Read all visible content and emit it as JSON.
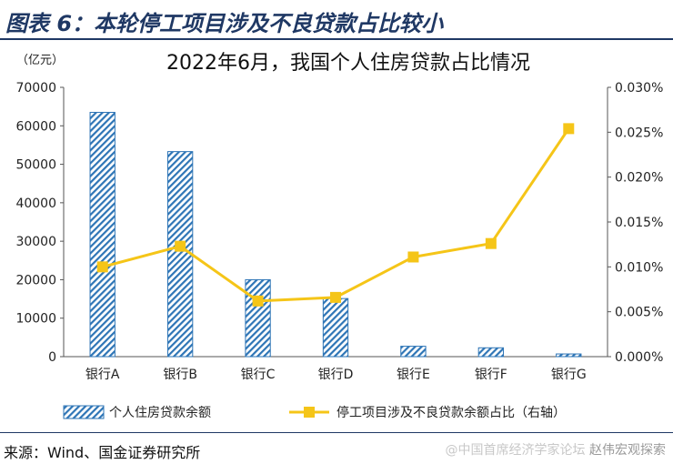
{
  "header": {
    "title": "图表 6：本轮停工项目涉及不良贷款占比较小"
  },
  "source": "来源：Wind、国金证券研究所",
  "watermark": {
    "account": "赵伟宏观探索",
    "forum": "@中国首席经济学家论坛"
  },
  "colors": {
    "bar": "#2e75b6",
    "line": "#f5c518",
    "title_bar": "#1f3864"
  },
  "chart_data": {
    "type": "bar",
    "title": "2022年6月，我国个人住房贷款占比情况",
    "left_unit": "（亿元）",
    "categories": [
      "银行A",
      "银行B",
      "银行C",
      "银行D",
      "银行E",
      "银行F",
      "银行G"
    ],
    "series": [
      {
        "name": "个人住房贷款余额",
        "type": "bar",
        "axis": "left",
        "values": [
          63500,
          53300,
          20000,
          15100,
          2700,
          2300,
          700
        ]
      },
      {
        "name": "停工项目涉及不良贷款余额占比（右轴）",
        "type": "line",
        "axis": "right",
        "values": [
          0.01,
          0.0123,
          0.0062,
          0.0066,
          0.0111,
          0.0126,
          0.0254
        ]
      }
    ],
    "ylim_left": [
      0,
      70000
    ],
    "yticks_left": [
      "0",
      "10000",
      "20000",
      "30000",
      "40000",
      "50000",
      "60000",
      "70000"
    ],
    "ylim_right": [
      0,
      0.03
    ],
    "yticks_right": [
      "0.000%",
      "0.005%",
      "0.010%",
      "0.015%",
      "0.020%",
      "0.025%",
      "0.030%"
    ],
    "grid": false,
    "legend": "bottom"
  }
}
